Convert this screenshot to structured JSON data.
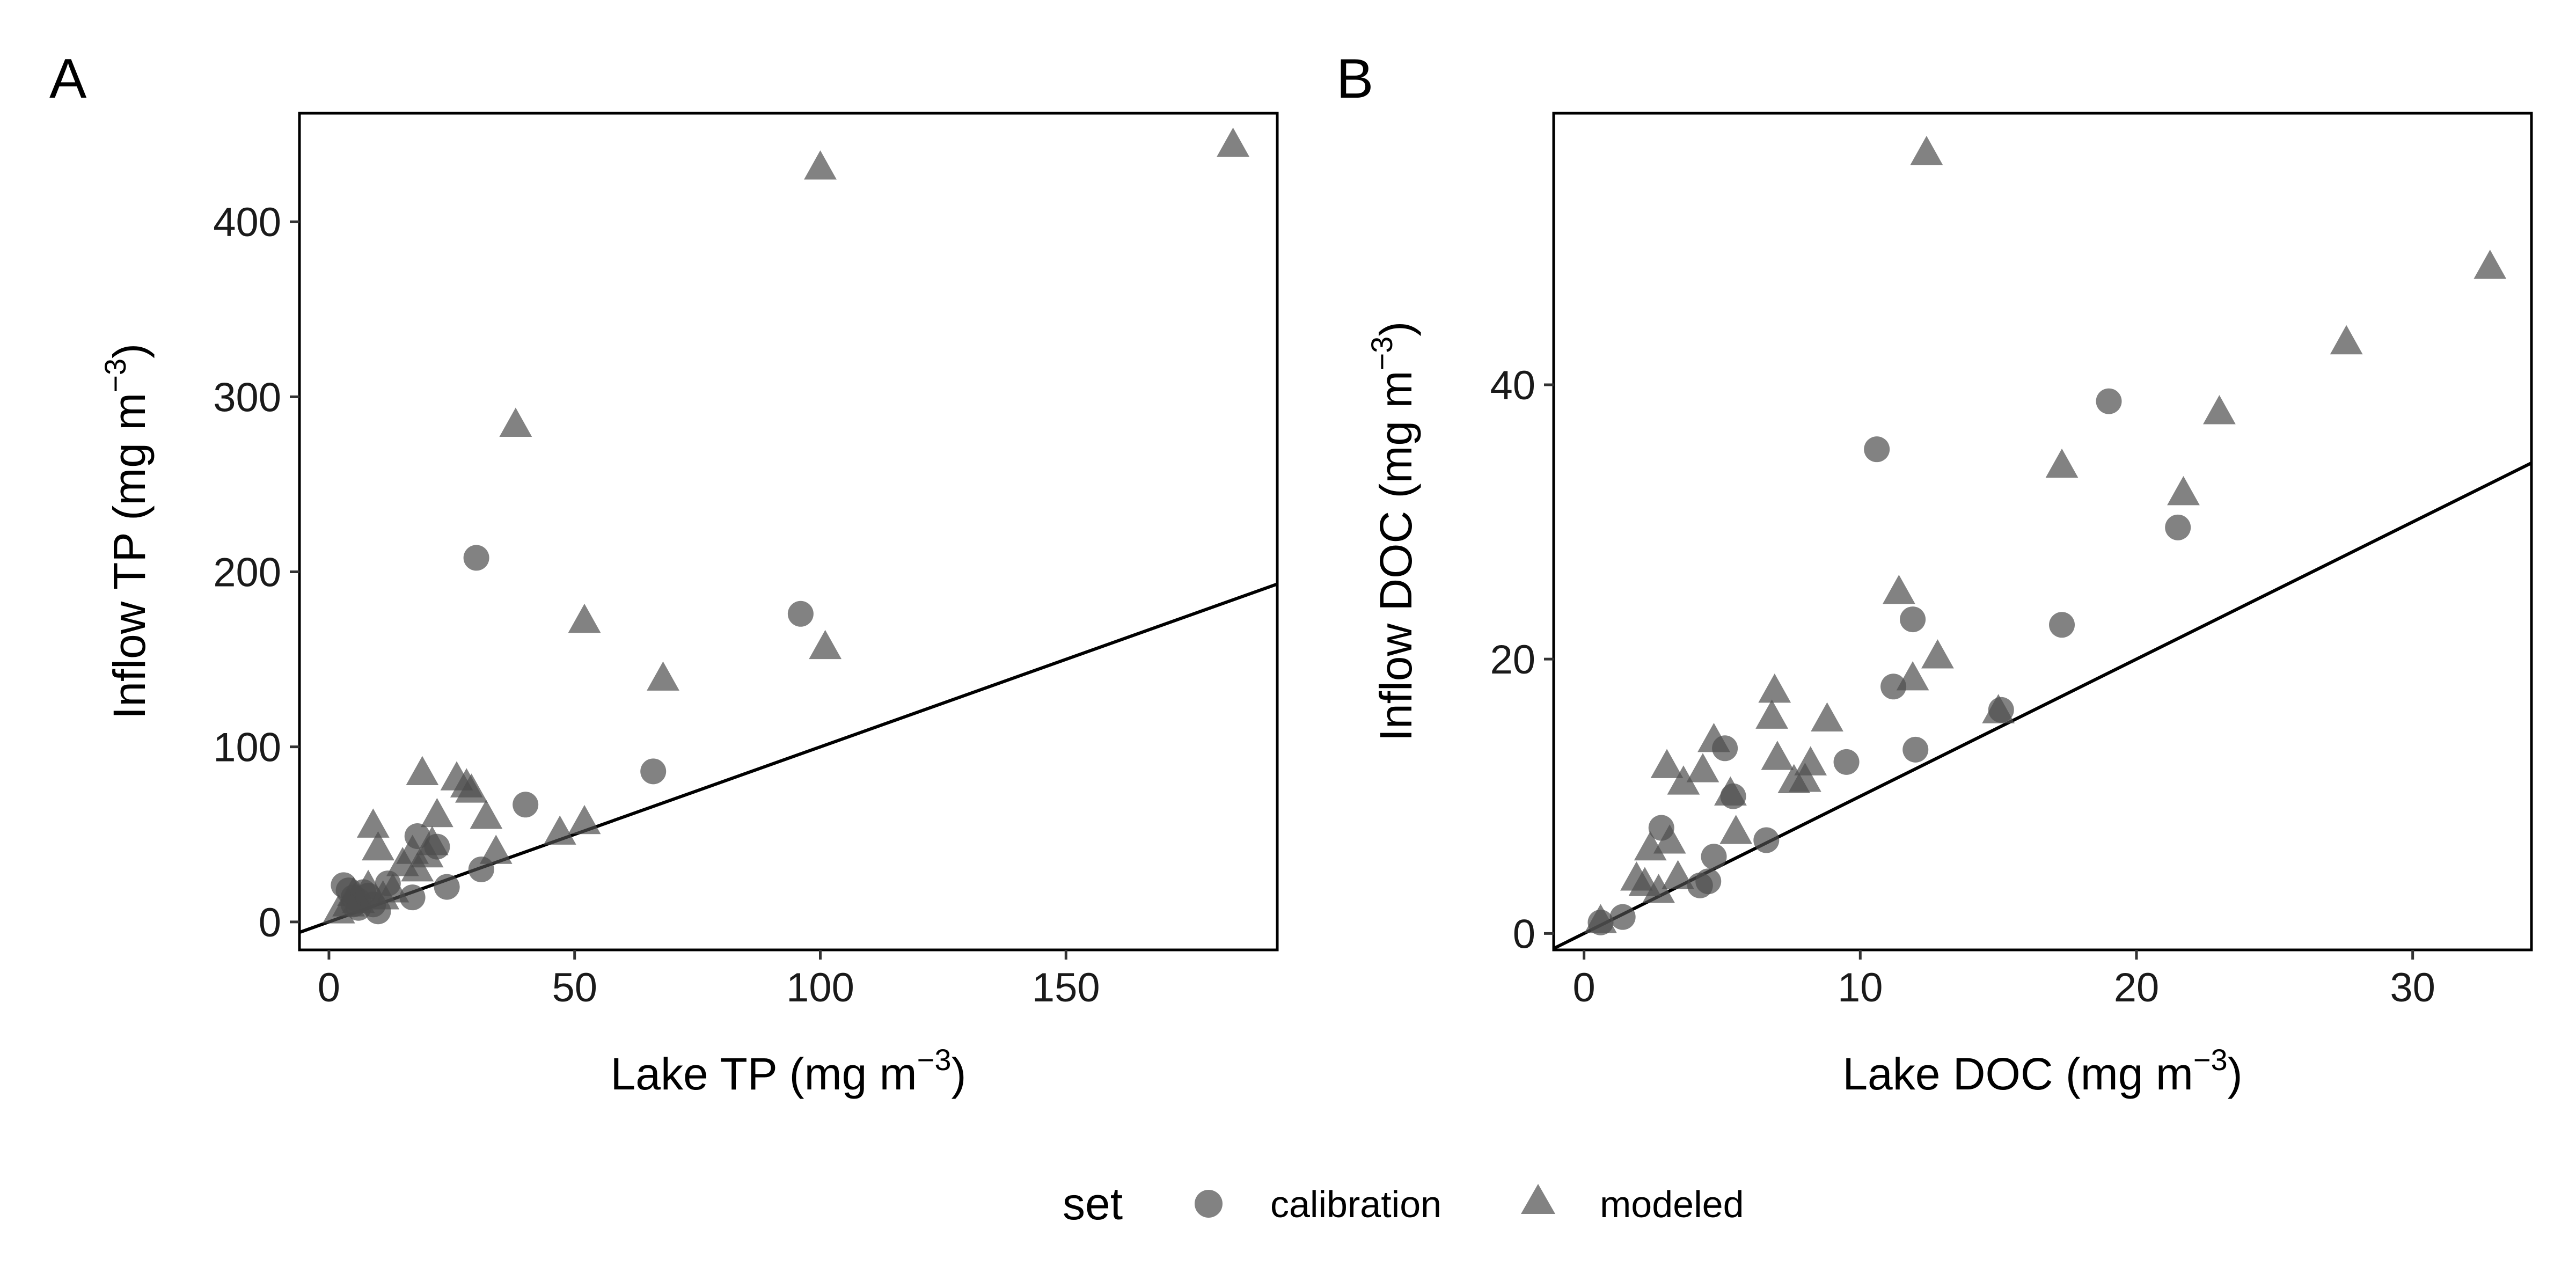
{
  "legend": {
    "title": "set",
    "items": [
      {
        "label": "calibration",
        "shape": "circle"
      },
      {
        "label": "modeled",
        "shape": "triangle"
      }
    ]
  },
  "colors": {
    "points": "#4d4d4d",
    "line": "#000000"
  },
  "chart_data": [
    {
      "panel": "A",
      "type": "scatter",
      "xlabel": "Lake TP (mg m^-3)",
      "xlabel_main": "Lake TP (mg m",
      "xlabel_sup": "−3",
      "xlabel_end": ")",
      "ylabel": "Inflow TP (mg m^-3)",
      "ylabel_main": "Inflow TP (mg m",
      "ylabel_sup": "−3",
      "ylabel_end": ")",
      "xlim": [
        -6,
        193
      ],
      "ylim": [
        -16,
        462
      ],
      "xticks": [
        0,
        50,
        100,
        150
      ],
      "yticks": [
        0,
        100,
        200,
        300,
        400
      ],
      "grid": false,
      "reference_line": {
        "slope": 1,
        "intercept": 0
      },
      "series": [
        {
          "name": "calibration",
          "marker": "circle",
          "points": [
            [
              3,
              21
            ],
            [
              4,
              18
            ],
            [
              5,
              10
            ],
            [
              5,
              14
            ],
            [
              6,
              8
            ],
            [
              6,
              12
            ],
            [
              7,
              17
            ],
            [
              8,
              15
            ],
            [
              9,
              10
            ],
            [
              10,
              6
            ],
            [
              12,
              22
            ],
            [
              17,
              14
            ],
            [
              18,
              49
            ],
            [
              22,
              43
            ],
            [
              24,
              20
            ],
            [
              31,
              30
            ],
            [
              30,
              208
            ],
            [
              40,
              67
            ],
            [
              66,
              86
            ],
            [
              96,
              176
            ]
          ]
        },
        {
          "name": "modeled",
          "marker": "triangle",
          "points": [
            [
              2,
              6
            ],
            [
              4,
              10
            ],
            [
              5,
              16
            ],
            [
              6,
              12
            ],
            [
              8,
              20
            ],
            [
              9,
              55
            ],
            [
              10,
              42
            ],
            [
              11,
              14
            ],
            [
              13,
              18
            ],
            [
              15,
              33
            ],
            [
              17,
              40
            ],
            [
              18,
              30
            ],
            [
              19,
              85
            ],
            [
              20,
              38
            ],
            [
              21,
              45
            ],
            [
              22,
              61
            ],
            [
              26,
              82
            ],
            [
              28,
              78
            ],
            [
              29,
              75
            ],
            [
              32,
              60
            ],
            [
              34,
              40
            ],
            [
              38,
              284
            ],
            [
              47,
              51
            ],
            [
              52,
              57
            ],
            [
              52,
              172
            ],
            [
              68,
              139
            ],
            [
              100,
              431
            ],
            [
              101,
              157
            ],
            [
              184,
              444
            ]
          ]
        }
      ]
    },
    {
      "panel": "B",
      "type": "scatter",
      "xlabel": "Lake DOC (mg m^-3)",
      "xlabel_main": "Lake DOC (mg m",
      "xlabel_sup": "−3",
      "xlabel_end": ")",
      "ylabel": "Inflow DOC (mg m^-3)",
      "ylabel_main": "Inflow DOC (mg m",
      "ylabel_sup": "−3",
      "ylabel_end": ")",
      "xlim": [
        -1.1,
        34.3
      ],
      "ylim": [
        -1.2,
        59.8
      ],
      "xticks": [
        0,
        10,
        20,
        30
      ],
      "yticks": [
        0,
        20,
        40
      ],
      "grid": false,
      "reference_line": {
        "slope": 1,
        "intercept": 0
      },
      "series": [
        {
          "name": "calibration",
          "marker": "circle",
          "points": [
            [
              0.6,
              0.8
            ],
            [
              1.4,
              1.2
            ],
            [
              2.8,
              7.7
            ],
            [
              4.2,
              3.5
            ],
            [
              4.5,
              3.8
            ],
            [
              4.7,
              5.6
            ],
            [
              5.1,
              13.5
            ],
            [
              5.4,
              10.0
            ],
            [
              6.6,
              6.8
            ],
            [
              9.5,
              12.5
            ],
            [
              10.6,
              35.3
            ],
            [
              11.2,
              18.0
            ],
            [
              11.9,
              22.9
            ],
            [
              12.0,
              13.4
            ],
            [
              15.1,
              16.3
            ],
            [
              17.3,
              22.5
            ],
            [
              19.0,
              38.8
            ],
            [
              21.5,
              29.6
            ]
          ]
        },
        {
          "name": "modeled",
          "marker": "triangle",
          "points": [
            [
              0.6,
              0.9
            ],
            [
              1.9,
              4.0
            ],
            [
              2.2,
              3.6
            ],
            [
              2.4,
              6.2
            ],
            [
              2.7,
              3.1
            ],
            [
              3.0,
              12.2
            ],
            [
              3.1,
              6.7
            ],
            [
              3.4,
              4.1
            ],
            [
              3.6,
              11.0
            ],
            [
              4.3,
              11.9
            ],
            [
              4.7,
              14.1
            ],
            [
              5.3,
              10.2
            ],
            [
              5.5,
              7.4
            ],
            [
              6.8,
              15.8
            ],
            [
              6.9,
              17.7
            ],
            [
              7.0,
              12.8
            ],
            [
              7.6,
              11.1
            ],
            [
              8.0,
              11.2
            ],
            [
              8.2,
              12.4
            ],
            [
              8.8,
              15.6
            ],
            [
              11.4,
              24.9
            ],
            [
              11.9,
              18.6
            ],
            [
              12.4,
              56.9
            ],
            [
              12.8,
              20.2
            ],
            [
              15.0,
              16.2
            ],
            [
              17.3,
              34.1
            ],
            [
              21.7,
              32.1
            ],
            [
              23.0,
              38.0
            ],
            [
              27.6,
              43.1
            ],
            [
              32.8,
              48.6
            ]
          ]
        }
      ]
    }
  ]
}
